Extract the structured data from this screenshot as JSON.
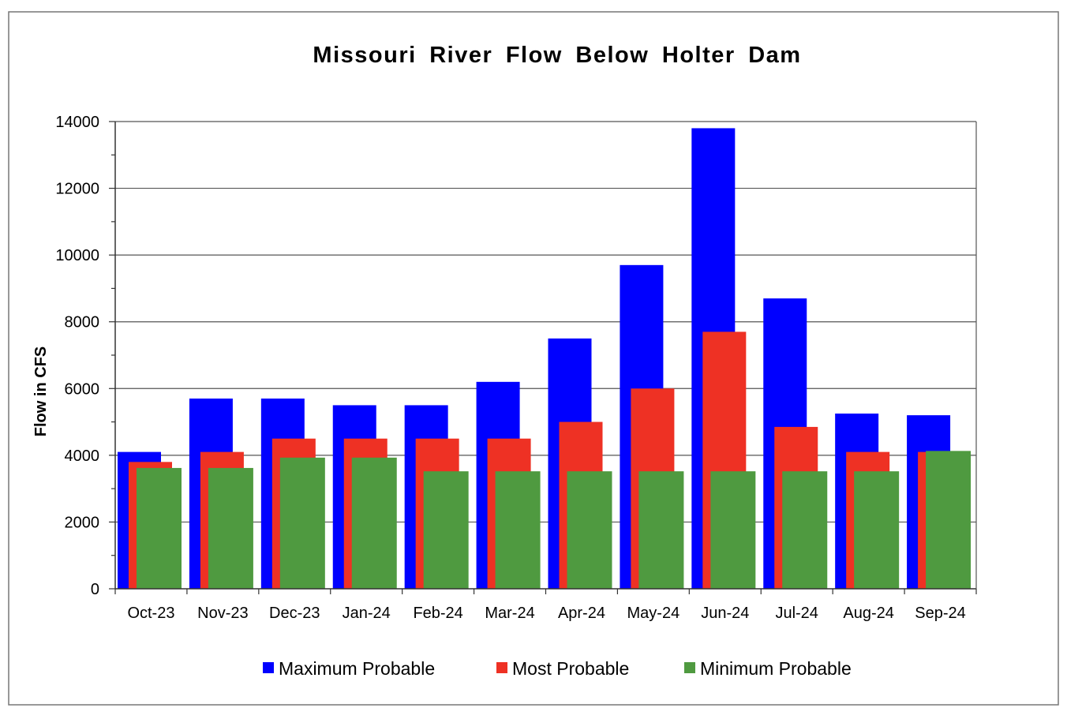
{
  "chart_data": {
    "type": "bar",
    "title": "Missouri River Flow Below Holter Dam",
    "xlabel": "",
    "ylabel": "Flow in CFS",
    "ylim": [
      0,
      14000
    ],
    "yticks": [
      0,
      2000,
      4000,
      6000,
      8000,
      10000,
      12000,
      14000
    ],
    "grid": true,
    "legend_position": "bottom",
    "categories": [
      "Oct-23",
      "Nov-23",
      "Dec-23",
      "Jan-24",
      "Feb-24",
      "Mar-24",
      "Apr-24",
      "May-24",
      "Jun-24",
      "Jul-24",
      "Aug-24",
      "Sep-24"
    ],
    "series": [
      {
        "name": "Maximum Probable",
        "color": "#0000ff",
        "values": [
          4100,
          5700,
          5700,
          5500,
          5500,
          6200,
          7500,
          9700,
          13800,
          8700,
          5250,
          5200
        ]
      },
      {
        "name": "Most Probable",
        "color": "#ee3124",
        "values": [
          3800,
          4100,
          4500,
          4500,
          4500,
          4500,
          5000,
          6000,
          7700,
          4850,
          4100,
          4100
        ]
      },
      {
        "name": "Minimum Probable",
        "color": "#4f9a40",
        "values": [
          3620,
          3620,
          3930,
          3930,
          3520,
          3520,
          3520,
          3520,
          3520,
          3520,
          3520,
          4130
        ]
      }
    ]
  }
}
